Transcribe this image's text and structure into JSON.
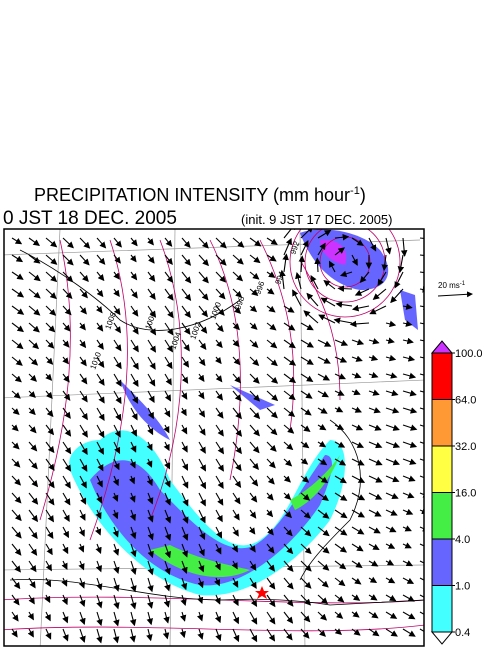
{
  "header": {
    "title": "PRECIPITATION INTENSITY (mm hour",
    "title_sup": "-1",
    "title_close": ")",
    "time": "0 JST 18 DEC. 2005",
    "init": "(init. 9 JST 17 DEC. 2005)"
  },
  "reference_vector": {
    "label": "20 ms",
    "label_sup": "-1"
  },
  "isobar_labels": [
    "1010",
    "1008",
    "1006",
    "1004",
    "1002",
    "1000",
    "998",
    "996",
    "994",
    "992"
  ],
  "legend": {
    "over_color": "#cc33ff",
    "under_color": "#ffffff",
    "colors": [
      "#ff0000",
      "#ff9933",
      "#ffff44",
      "#44ee44",
      "#6666ff",
      "#44ffff"
    ],
    "ticks": [
      {
        "value": 100,
        "label": "100.0"
      },
      {
        "value": 64,
        "label": "64.0"
      },
      {
        "value": 32,
        "label": "32.0"
      },
      {
        "value": 16,
        "label": "16.0"
      },
      {
        "value": 4,
        "label": "4.0"
      },
      {
        "value": 1,
        "label": "1.0"
      },
      {
        "value": 0.4,
        "label": "0.4"
      }
    ]
  }
}
